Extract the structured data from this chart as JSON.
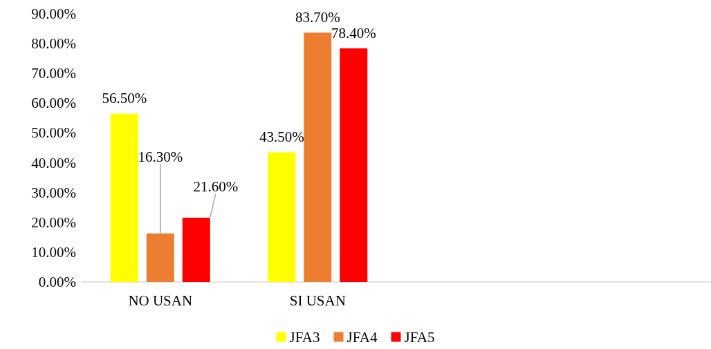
{
  "chart_data": {
    "type": "bar",
    "categories": [
      "NO USAN",
      "SI USAN",
      null,
      null
    ],
    "series": [
      {
        "name": "JFA3",
        "color": "#ffff00",
        "values": [
          56.5,
          43.5,
          null,
          null
        ],
        "value_labels": [
          "56.50%",
          "43.50%",
          null,
          null
        ]
      },
      {
        "name": "JFA4",
        "color": "#ed7d31",
        "values": [
          16.3,
          83.7,
          null,
          null
        ],
        "value_labels": [
          "16.30%",
          "83.70%",
          null,
          null
        ]
      },
      {
        "name": "JFA5",
        "color": "#ff0000",
        "values": [
          21.6,
          78.4,
          null,
          null
        ],
        "value_labels": [
          "21.60%",
          "78.40%",
          null,
          null
        ]
      }
    ],
    "ylim": [
      0,
      90
    ],
    "yticks": [
      {
        "value": 0,
        "label": "0.00%"
      },
      {
        "value": 10,
        "label": "10.00%"
      },
      {
        "value": 20,
        "label": "20.00%"
      },
      {
        "value": 30,
        "label": "30.00%"
      },
      {
        "value": 40,
        "label": "40.00%"
      },
      {
        "value": 50,
        "label": "50.00%"
      },
      {
        "value": 60,
        "label": "60.00%"
      },
      {
        "value": 70,
        "label": "70.00%"
      },
      {
        "value": 80,
        "label": "80.00%"
      },
      {
        "value": 90,
        "label": "90.00%"
      }
    ],
    "grid": false,
    "legend": "bottom"
  }
}
